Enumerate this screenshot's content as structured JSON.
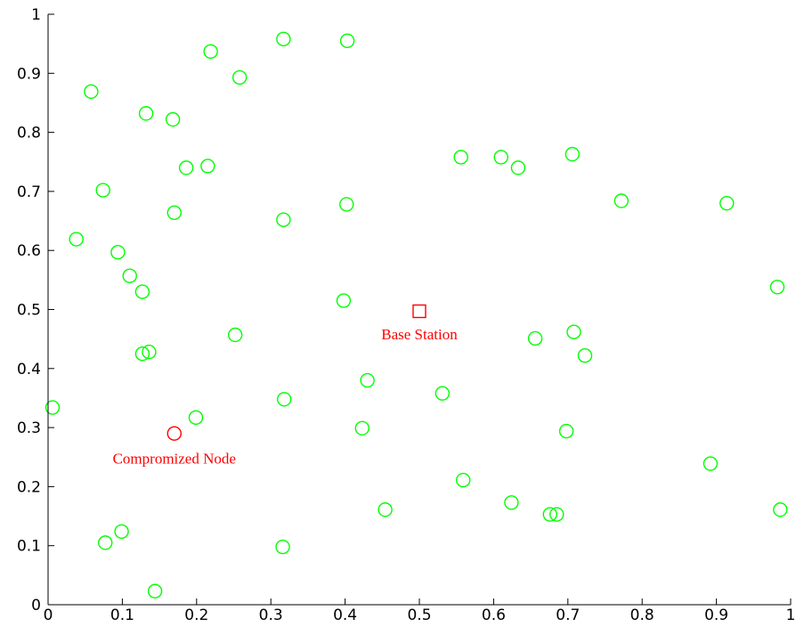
{
  "chart_data": {
    "type": "scatter",
    "xlim": [
      0,
      1
    ],
    "ylim": [
      0,
      1
    ],
    "grid": false,
    "x_ticks": [
      0,
      0.1,
      0.2,
      0.3,
      0.4,
      0.5,
      0.6,
      0.7,
      0.8,
      0.9,
      1
    ],
    "y_ticks": [
      0,
      0.1,
      0.2,
      0.3,
      0.4,
      0.5,
      0.6,
      0.7,
      0.8,
      0.9,
      1
    ],
    "x_tick_labels": [
      "0",
      "0.1",
      "0.2",
      "0.3",
      "0.4",
      "0.5",
      "0.6",
      "0.7",
      "0.8",
      "0.9",
      "1"
    ],
    "y_tick_labels": [
      "0",
      "0.1",
      "0.2",
      "0.3",
      "0.4",
      "0.5",
      "0.6",
      "0.7",
      "0.8",
      "0.9",
      "1"
    ],
    "series": [
      {
        "marker": "circle",
        "color": "#00ff00",
        "points": [
          [
            0.317,
            0.958
          ],
          [
            0.403,
            0.955
          ],
          [
            0.219,
            0.937
          ],
          [
            0.058,
            0.869
          ],
          [
            0.258,
            0.893
          ],
          [
            0.132,
            0.832
          ],
          [
            0.168,
            0.822
          ],
          [
            0.186,
            0.74
          ],
          [
            0.215,
            0.743
          ],
          [
            0.074,
            0.702
          ],
          [
            0.17,
            0.664
          ],
          [
            0.317,
            0.652
          ],
          [
            0.402,
            0.678
          ],
          [
            0.038,
            0.619
          ],
          [
            0.094,
            0.597
          ],
          [
            0.11,
            0.557
          ],
          [
            0.127,
            0.53
          ],
          [
            0.398,
            0.515
          ],
          [
            0.556,
            0.758
          ],
          [
            0.61,
            0.758
          ],
          [
            0.633,
            0.74
          ],
          [
            0.706,
            0.763
          ],
          [
            0.772,
            0.684
          ],
          [
            0.914,
            0.68
          ],
          [
            0.982,
            0.538
          ],
          [
            0.252,
            0.457
          ],
          [
            0.127,
            0.425
          ],
          [
            0.136,
            0.428
          ],
          [
            0.656,
            0.451
          ],
          [
            0.708,
            0.462
          ],
          [
            0.723,
            0.422
          ],
          [
            0.43,
            0.38
          ],
          [
            0.006,
            0.334
          ],
          [
            0.199,
            0.317
          ],
          [
            0.318,
            0.348
          ],
          [
            0.531,
            0.358
          ],
          [
            0.423,
            0.299
          ],
          [
            0.698,
            0.294
          ],
          [
            0.892,
            0.239
          ],
          [
            0.559,
            0.211
          ],
          [
            0.624,
            0.173
          ],
          [
            0.676,
            0.153
          ],
          [
            0.685,
            0.153
          ],
          [
            0.454,
            0.161
          ],
          [
            0.986,
            0.161
          ],
          [
            0.077,
            0.105
          ],
          [
            0.099,
            0.124
          ],
          [
            0.316,
            0.098
          ],
          [
            0.144,
            0.023
          ]
        ]
      },
      {
        "marker": "circle",
        "color": "#ff0000",
        "points": [
          [
            0.17,
            0.29
          ]
        ]
      },
      {
        "marker": "square",
        "color": "#ff0000",
        "points": [
          [
            0.5,
            0.497
          ]
        ]
      }
    ],
    "annotations": [
      {
        "text": "Base Station",
        "x": 0.5,
        "y": 0.455,
        "color": "#ff0000"
      },
      {
        "text": "Compromized Node",
        "x": 0.17,
        "y": 0.245,
        "color": "#ff0000"
      }
    ]
  }
}
